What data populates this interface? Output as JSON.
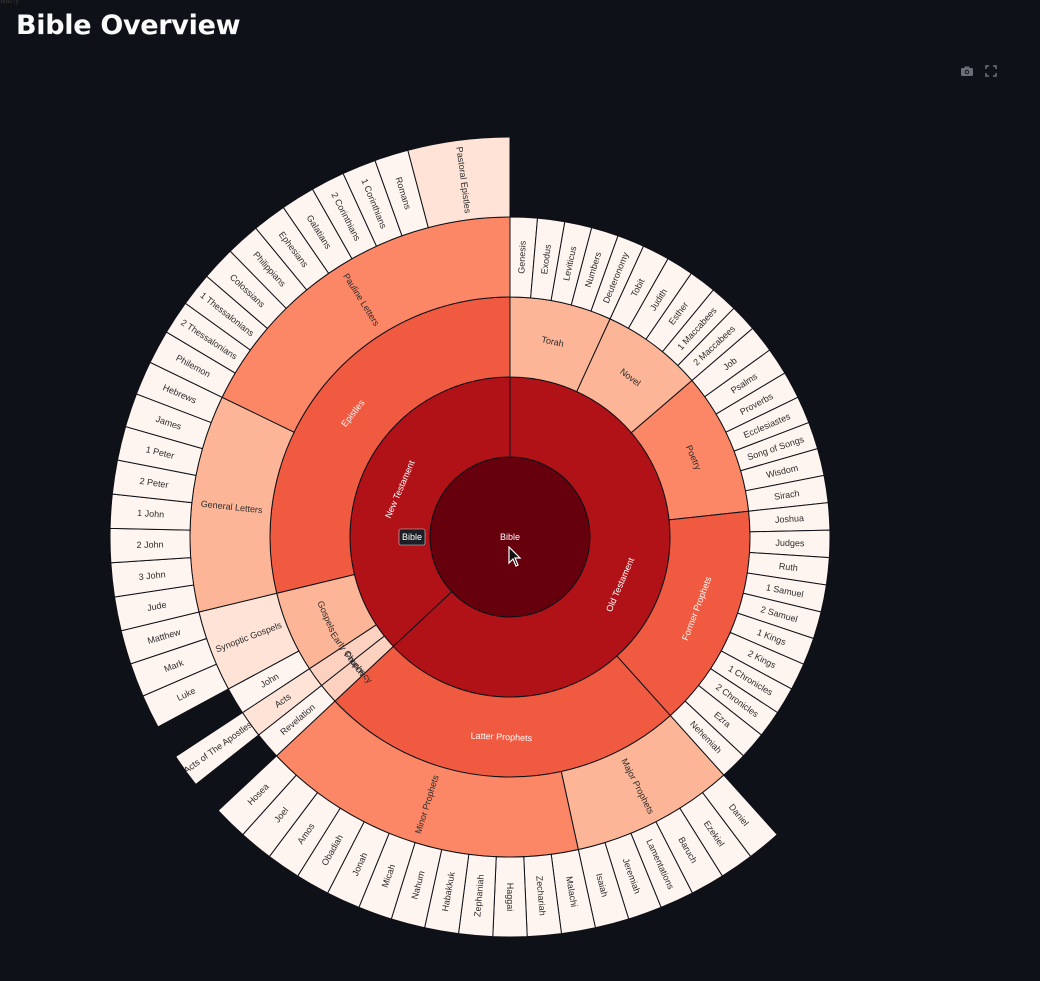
{
  "page": {
    "title": "Bible Overview"
  },
  "toolbar": {
    "camera_icon": "camera-icon",
    "fullscreen_icon": "fullscreen-icon"
  },
  "hover": {
    "label": "Bible"
  },
  "colors": {
    "background": "#0e1117",
    "level0": "#67000d",
    "level1": "#b11218",
    "level2_dark": "#ef5a41",
    "level2_mid": "#fb8767",
    "level2_light": "#fdb597",
    "level2_pale": "#fdd1c0",
    "level3": "#fee3d6",
    "leaf": "#fff5f0"
  },
  "chart_data": {
    "type": "sunburst",
    "title": "",
    "root": {
      "name": "Bible",
      "children": [
        {
          "name": "Old Testament",
          "children": [
            {
              "name": "Torah",
              "children": [
                {
                  "name": "Genesis",
                  "value": 1
                },
                {
                  "name": "Exodus",
                  "value": 1
                },
                {
                  "name": "Leviticus",
                  "value": 1
                },
                {
                  "name": "Numbers",
                  "value": 1
                },
                {
                  "name": "Deuteronomy",
                  "value": 1
                }
              ]
            },
            {
              "name": "Novel",
              "children": [
                {
                  "name": "Tobit",
                  "value": 1
                },
                {
                  "name": "Judith",
                  "value": 1
                },
                {
                  "name": "Esther",
                  "value": 1
                },
                {
                  "name": "1 Maccabees",
                  "value": 1
                },
                {
                  "name": "2 Maccabees",
                  "value": 1
                }
              ]
            },
            {
              "name": "Poetry",
              "children": [
                {
                  "name": "Job",
                  "value": 1
                },
                {
                  "name": "Psalms",
                  "value": 1
                },
                {
                  "name": "Proverbs",
                  "value": 1
                },
                {
                  "name": "Ecclesiastes",
                  "value": 1
                },
                {
                  "name": "Song of Songs",
                  "value": 1
                },
                {
                  "name": "Wisdom",
                  "value": 1
                },
                {
                  "name": "Sirach",
                  "value": 1
                }
              ]
            },
            {
              "name": "Former Prophets",
              "children": [
                {
                  "name": "Joshua",
                  "value": 1
                },
                {
                  "name": "Judges",
                  "value": 1
                },
                {
                  "name": "Ruth",
                  "value": 1
                },
                {
                  "name": "1 Samuel",
                  "value": 1
                },
                {
                  "name": "2 Samuel",
                  "value": 1
                },
                {
                  "name": "1 Kings",
                  "value": 1
                },
                {
                  "name": "2 Kings",
                  "value": 1
                },
                {
                  "name": "1 Chronicles",
                  "value": 1
                },
                {
                  "name": "2 Chronicles",
                  "value": 1
                },
                {
                  "name": "Ezra",
                  "value": 1
                },
                {
                  "name": "Nehemiah",
                  "value": 1
                }
              ]
            },
            {
              "name": "Latter Prophets",
              "children": [
                {
                  "name": "Major Prophets",
                  "children": [
                    {
                      "name": "Daniel",
                      "value": 1
                    },
                    {
                      "name": "Ezekiel",
                      "value": 1
                    },
                    {
                      "name": "Baruch",
                      "value": 1
                    },
                    {
                      "name": "Lamentations",
                      "value": 1
                    },
                    {
                      "name": "Jeremiah",
                      "value": 1
                    },
                    {
                      "name": "Isaiah",
                      "value": 1
                    }
                  ]
                },
                {
                  "name": "Minor Prophets",
                  "children": [
                    {
                      "name": "Malachi",
                      "value": 1
                    },
                    {
                      "name": "Zechariah",
                      "value": 1
                    },
                    {
                      "name": "Haggai",
                      "value": 1
                    },
                    {
                      "name": "Zephaniah",
                      "value": 1
                    },
                    {
                      "name": "Habakkuk",
                      "value": 1
                    },
                    {
                      "name": "Nahum",
                      "value": 1
                    },
                    {
                      "name": "Micah",
                      "value": 1
                    },
                    {
                      "name": "Jonah",
                      "value": 1
                    },
                    {
                      "name": "Obadiah",
                      "value": 1
                    },
                    {
                      "name": "Amos",
                      "value": 1
                    },
                    {
                      "name": "Joel",
                      "value": 1
                    },
                    {
                      "name": "Hosea",
                      "value": 1
                    }
                  ]
                }
              ]
            }
          ]
        },
        {
          "name": "New Testament",
          "children": [
            {
              "name": "Prophecy",
              "children": [
                {
                  "name": "Revelation",
                  "value": 1
                }
              ]
            },
            {
              "name": "Early Church",
              "children": [
                {
                  "name": "Acts",
                  "children": [
                    {
                      "name": "Acts of The Apostles",
                      "value": 1
                    }
                  ]
                }
              ]
            },
            {
              "name": "Gospels",
              "children": [
                {
                  "name": "John",
                  "value": 1
                },
                {
                  "name": "Synoptic Gospels",
                  "children": [
                    {
                      "name": "Luke",
                      "value": 1
                    },
                    {
                      "name": "Mark",
                      "value": 1
                    },
                    {
                      "name": "Matthew",
                      "value": 1
                    }
                  ]
                }
              ]
            },
            {
              "name": "Epistles",
              "children": [
                {
                  "name": "General Letters",
                  "children": [
                    {
                      "name": "Jude",
                      "value": 1
                    },
                    {
                      "name": "3 John",
                      "value": 1
                    },
                    {
                      "name": "2 John",
                      "value": 1
                    },
                    {
                      "name": "1 John",
                      "value": 1
                    },
                    {
                      "name": "2 Peter",
                      "value": 1
                    },
                    {
                      "name": "1 Peter",
                      "value": 1
                    },
                    {
                      "name": "James",
                      "value": 1
                    },
                    {
                      "name": "Hebrews",
                      "value": 1
                    }
                  ]
                },
                {
                  "name": "Pauline Letters",
                  "children": [
                    {
                      "name": "Philemon",
                      "value": 1
                    },
                    {
                      "name": "2 Thessalonians",
                      "value": 1
                    },
                    {
                      "name": "1 Thessalonians",
                      "value": 1
                    },
                    {
                      "name": "Colossians",
                      "value": 1
                    },
                    {
                      "name": "Philippians",
                      "value": 1
                    },
                    {
                      "name": "Ephesians",
                      "value": 1
                    },
                    {
                      "name": "Galatians",
                      "value": 1
                    },
                    {
                      "name": "2 Corinthians",
                      "value": 1
                    },
                    {
                      "name": "1 Corinthians",
                      "value": 1
                    },
                    {
                      "name": "Romans",
                      "value": 1
                    },
                    {
                      "name": "Pastoral Epistles",
                      "children": [
                        {
                          "name": "Titus",
                          "value": 1
                        },
                        {
                          "name": "2 Timothy",
                          "value": 1
                        },
                        {
                          "name": "1 Timothy",
                          "value": 1
                        }
                      ]
                    }
                  ]
                }
              ]
            }
          ]
        }
      ]
    }
  }
}
